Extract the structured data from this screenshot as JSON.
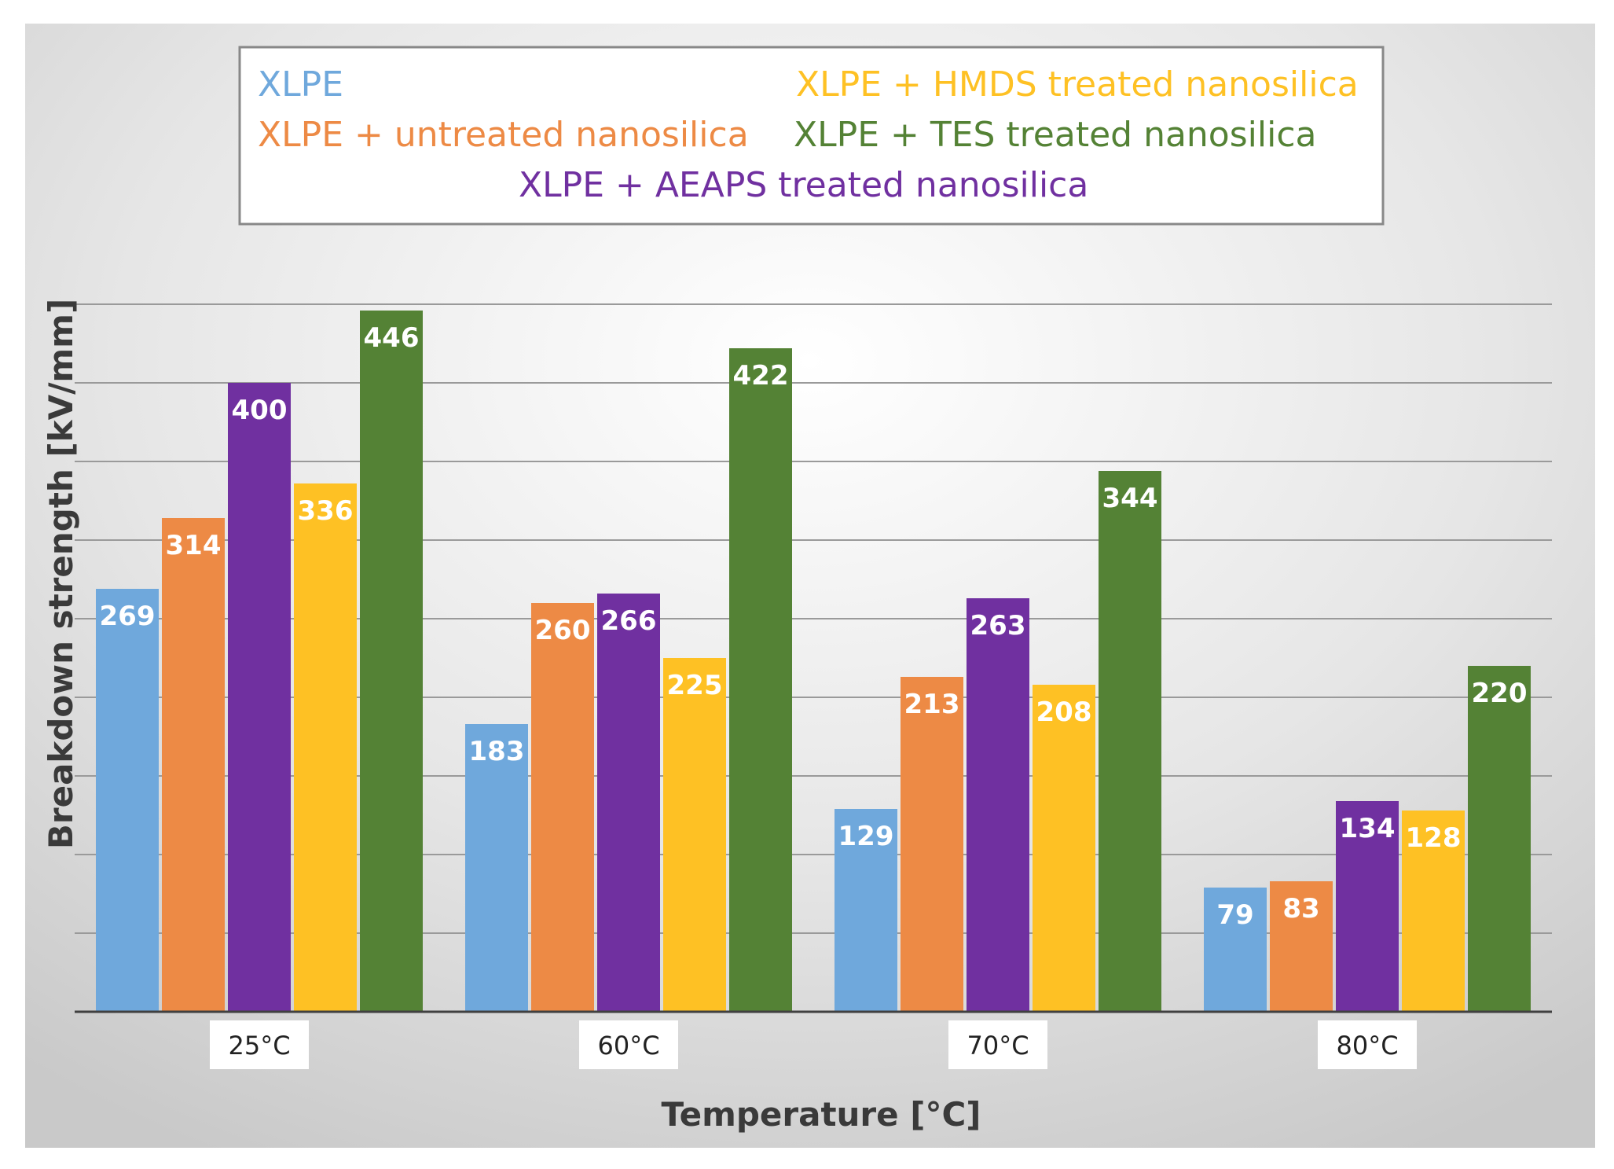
{
  "chart_data": {
    "type": "bar",
    "title": "",
    "xlabel": "Temperature [°C]",
    "ylabel": "Breakdown strength [kV/mm]",
    "categories": [
      "25°C",
      "60°C",
      "70°C",
      "80°C"
    ],
    "ylim": [
      0,
      450
    ],
    "grid": true,
    "legend_position": "top-center",
    "series": [
      {
        "name": "XLPE",
        "color": "#6fa8dc",
        "values": [
          269,
          183,
          129,
          79
        ]
      },
      {
        "name": "XLPE + untreated nanosilica",
        "color": "#ed8a45",
        "values": [
          314,
          260,
          213,
          83
        ]
      },
      {
        "name": "XLPE + AEAPS treated nanosilica",
        "color": "#7030a0",
        "values": [
          400,
          266,
          263,
          134
        ]
      },
      {
        "name": "XLPE + HMDS treated nanosilica",
        "color": "#fec124",
        "values": [
          336,
          225,
          208,
          128
        ]
      },
      {
        "name": "XLPE + TES treated nanosilica",
        "color": "#548235",
        "values": [
          446,
          422,
          344,
          220
        ]
      }
    ]
  }
}
